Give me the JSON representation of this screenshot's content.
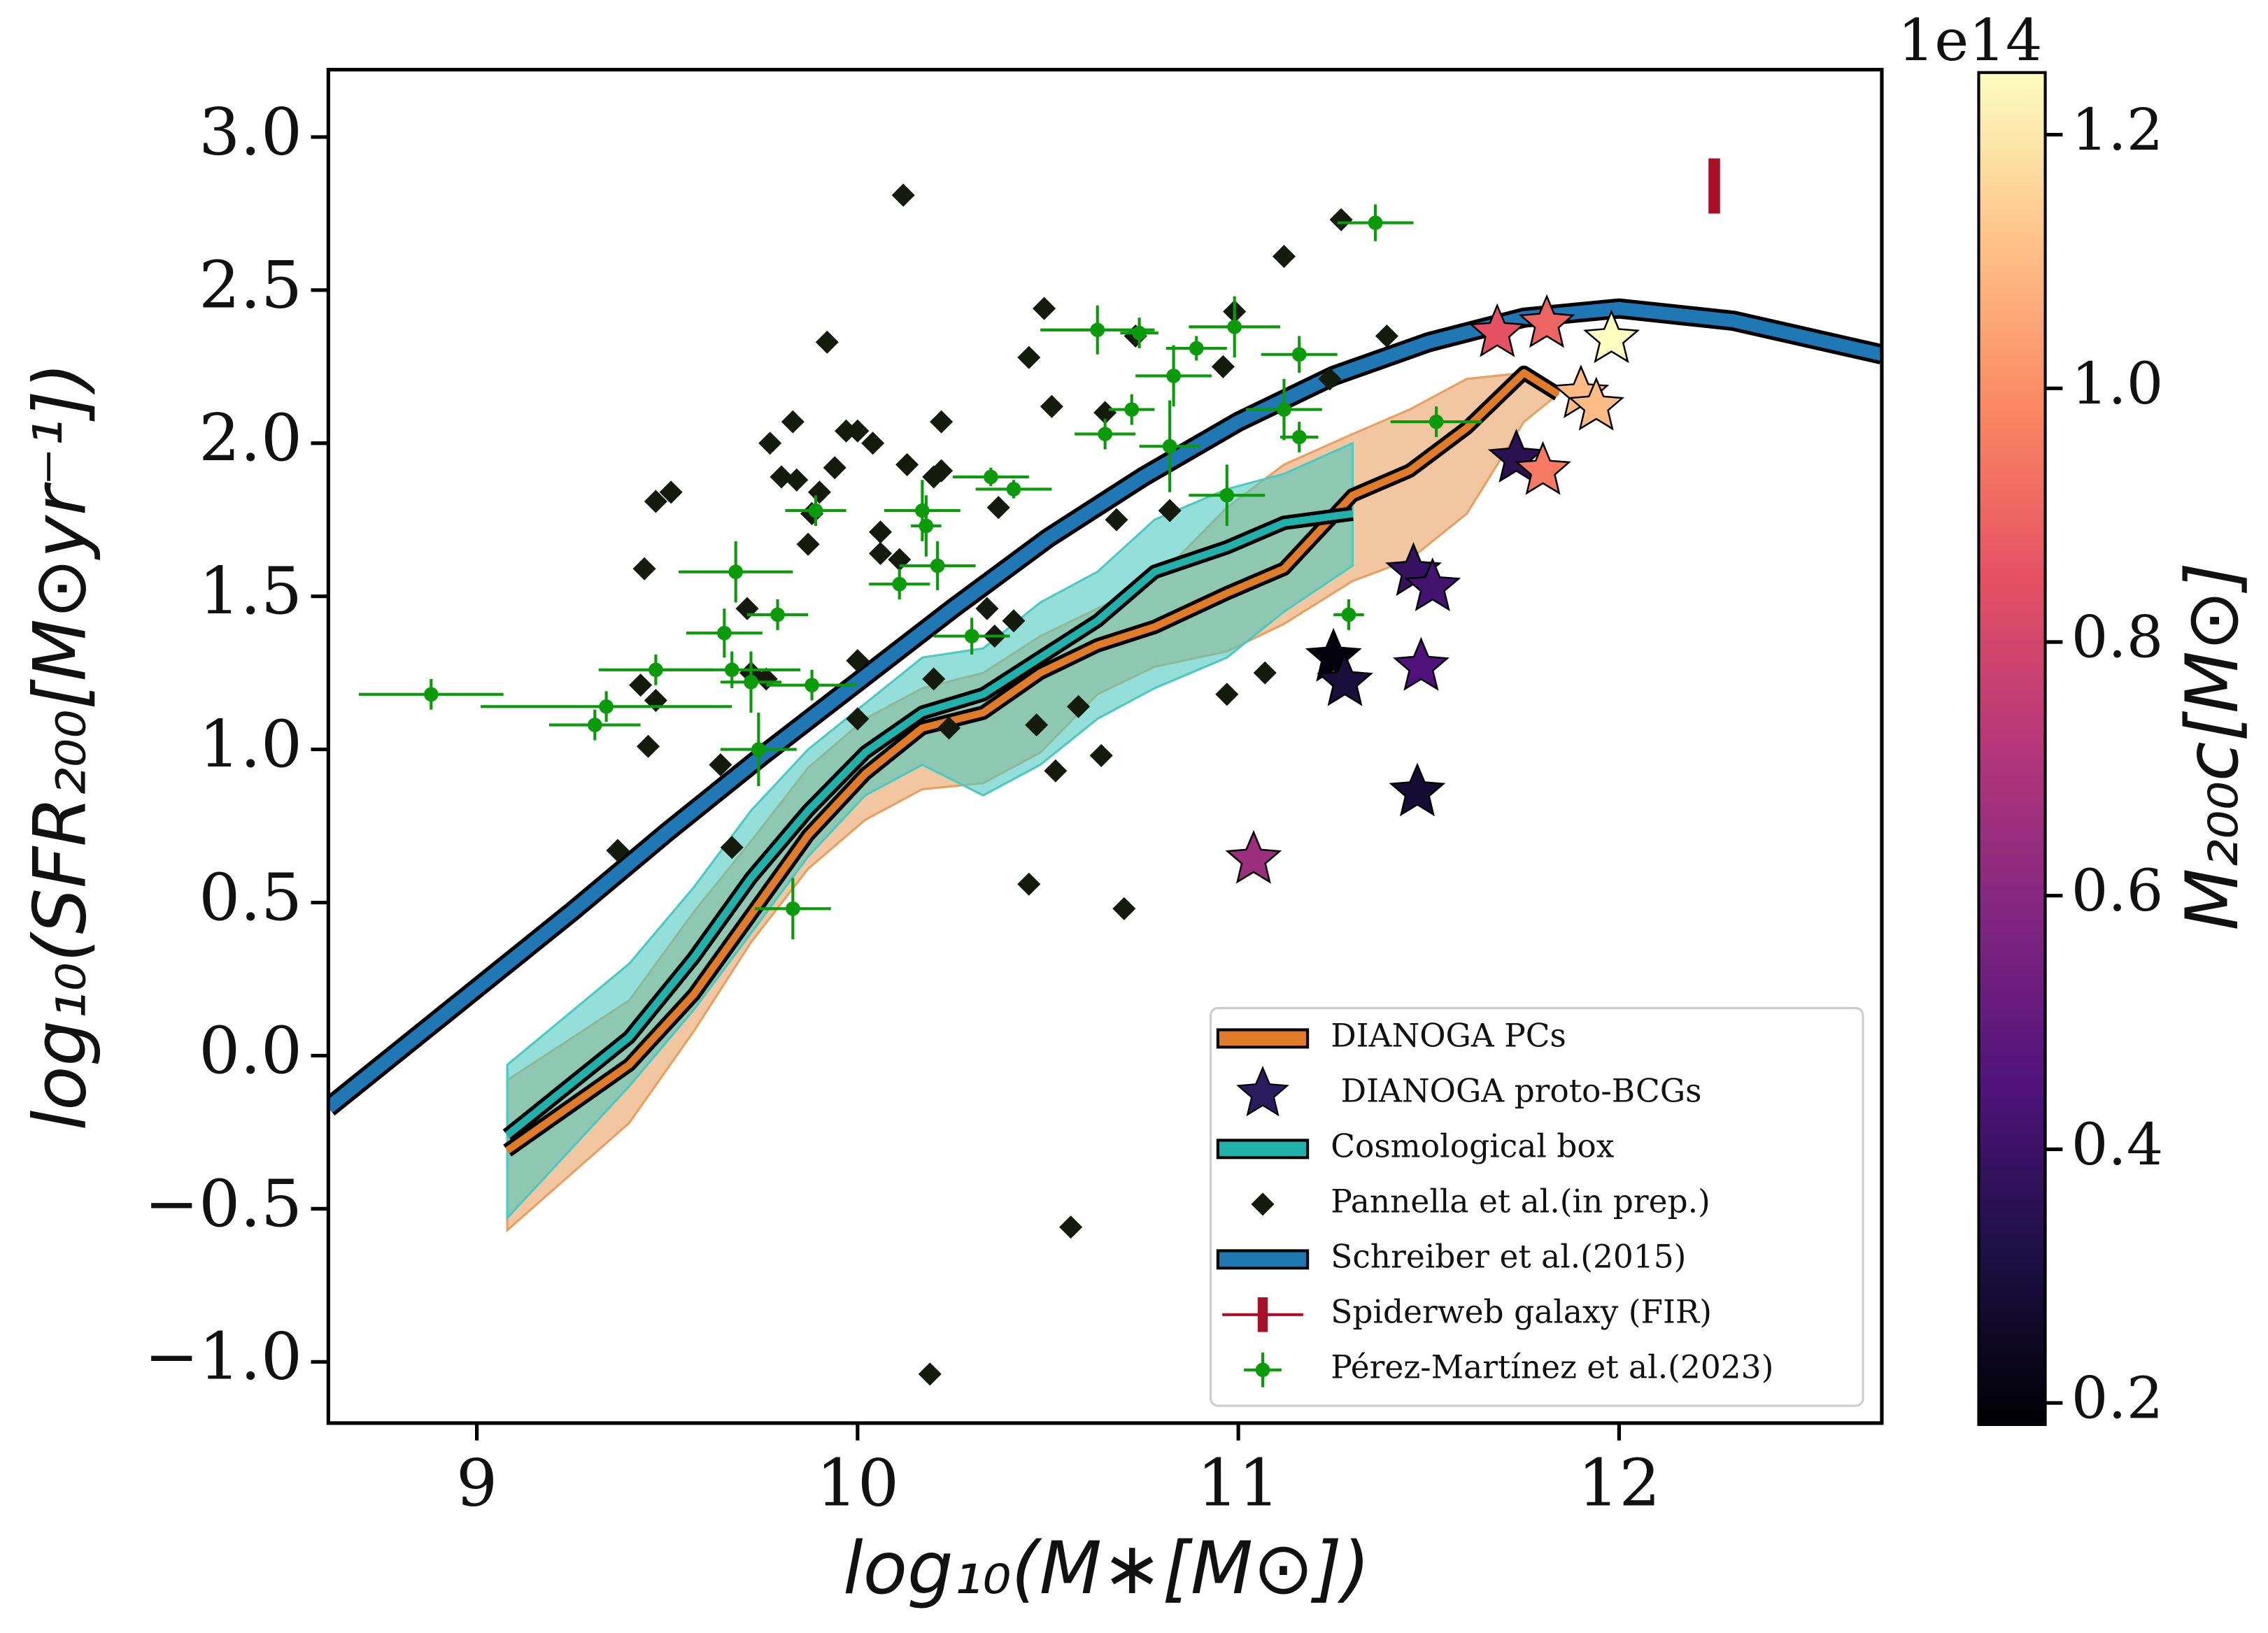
{
  "chart_data": {
    "type": "scatter",
    "x_label": "log₁₀(M∗[M⊙])",
    "y_label": "log₁₀(SFR₂₀₀[M⊙yr⁻¹])",
    "xlim": [
      8.61,
      12.69
    ],
    "ylim": [
      -1.2,
      3.22
    ],
    "xticks": [
      9,
      10,
      11,
      12
    ],
    "yticks": [
      {
        "value": 3,
        "label": "3.0"
      },
      {
        "value": 2.5,
        "label": "2.5"
      },
      {
        "value": 2,
        "label": "2.0"
      },
      {
        "value": 1.5,
        "label": "1.5"
      },
      {
        "value": 1,
        "label": "1.0"
      },
      {
        "value": 0.5,
        "label": "0.5"
      },
      {
        "value": 0,
        "label": "0.0"
      },
      {
        "value": -0.5,
        "label": "−0.5"
      },
      {
        "value": -1,
        "label": "−1.0"
      }
    ],
    "legend": "lower right",
    "colorbar": {
      "label": "M₂₀₀c[M⊙]",
      "offset_label": "1e14",
      "lim": [
        0.183,
        1.249
      ],
      "ticks": [
        0.2,
        0.4,
        0.6,
        0.8,
        {
          "value": 1,
          "label": "1.0"
        },
        1.2
      ],
      "colors": [
        "#000004",
        "#1c1044",
        "#4f127b",
        "#812581",
        "#b5367a",
        "#e55064",
        "#fb8761",
        "#fec287",
        "#fcfdbf"
      ]
    },
    "series": [
      {
        "name": "DIANOGA PCs",
        "type": "line",
        "color": "#e07b28",
        "band_color": "#e8a060",
        "x": [
          9.08,
          9.4,
          9.57,
          9.72,
          9.87,
          10.02,
          10.17,
          10.33,
          10.48,
          10.63,
          10.78,
          10.97,
          11.12,
          11.3,
          11.45,
          11.6,
          11.75,
          11.84
        ],
        "values": [
          -0.31,
          -0.03,
          0.2,
          0.46,
          0.72,
          0.92,
          1.07,
          1.12,
          1.25,
          1.34,
          1.4,
          1.51,
          1.59,
          1.83,
          1.91,
          2.05,
          2.23,
          2.16
        ],
        "lower": [
          -0.57,
          -0.22,
          0.08,
          0.37,
          0.61,
          0.77,
          0.87,
          0.89,
          0.99,
          1.18,
          1.27,
          1.32,
          1.41,
          1.55,
          1.62,
          1.77,
          2.07,
          2.16
        ],
        "upper": [
          -0.08,
          0.18,
          0.47,
          0.7,
          0.94,
          1.1,
          1.2,
          1.25,
          1.37,
          1.46,
          1.55,
          1.79,
          1.93,
          2.03,
          2.11,
          2.21,
          2.23,
          2.16
        ]
      },
      {
        "name": " DIANOGA proto-BCGs",
        "type": "stars",
        "color": "#2a1a5e",
        "x": [
          11.68,
          11.81,
          11.98,
          11.9,
          11.94,
          11.73,
          11.8,
          11.46,
          11.51,
          11.25,
          11.28,
          11.48,
          11.47,
          11.04
        ],
        "values": [
          2.36,
          2.39,
          2.34,
          2.16,
          2.12,
          1.95,
          1.91,
          1.58,
          1.53,
          1.3,
          1.22,
          1.27,
          0.86,
          0.64
        ],
        "m200": [
          0.85,
          0.9,
          1.25,
          1.1,
          1.1,
          0.35,
          0.95,
          0.38,
          0.42,
          0.2,
          0.3,
          0.45,
          0.28,
          0.65
        ]
      },
      {
        "name": "Cosmological box",
        "type": "line",
        "color": "#20b2aa",
        "band_color": "#4cc9c0",
        "x": [
          9.08,
          9.4,
          9.57,
          9.72,
          9.87,
          10.02,
          10.17,
          10.33,
          10.48,
          10.63,
          10.78,
          10.97,
          11.12,
          11.3
        ],
        "values": [
          -0.26,
          0.06,
          0.32,
          0.58,
          0.8,
          0.99,
          1.12,
          1.18,
          1.3,
          1.42,
          1.58,
          1.66,
          1.74,
          1.77
        ],
        "lower": [
          -0.53,
          -0.1,
          0.15,
          0.4,
          0.65,
          0.85,
          0.95,
          0.85,
          0.95,
          1.1,
          1.2,
          1.3,
          1.45,
          1.6
        ],
        "upper": [
          -0.03,
          0.3,
          0.55,
          0.8,
          1.0,
          1.15,
          1.3,
          1.33,
          1.48,
          1.58,
          1.75,
          1.85,
          1.9,
          2.0
        ]
      },
      {
        "name": "Pannella et al.(in prep.)",
        "type": "diamonds",
        "color": "#141a0c",
        "x": [
          10.12,
          11.12,
          11.27,
          10.49,
          9.92,
          10.45,
          10.73,
          10.99,
          10.96,
          11.24,
          11.39,
          10.51,
          10.65,
          9.83,
          10.22,
          9.77,
          9.97,
          10.0,
          10.04,
          9.94,
          10.13,
          10.2,
          10.22,
          9.8,
          9.84,
          9.9,
          9.51,
          9.47,
          9.88,
          10.37,
          10.68,
          10.82,
          10.06,
          9.44,
          10.06,
          10.11,
          9.87,
          9.71,
          10.34,
          10.41,
          10.36,
          9.72,
          9.76,
          9.43,
          9.47,
          9.45,
          10.0,
          10.0,
          10.2,
          10.24,
          10.47,
          10.58,
          11.07,
          10.97,
          10.52,
          10.64,
          9.67,
          9.64,
          9.37,
          10.45,
          10.7,
          10.56,
          10.19
        ],
        "values": [
          2.81,
          2.61,
          2.73,
          2.44,
          2.33,
          2.28,
          2.35,
          2.43,
          2.25,
          2.21,
          2.35,
          2.12,
          2.1,
          2.07,
          2.07,
          2.0,
          2.04,
          2.04,
          2.0,
          1.92,
          1.93,
          1.89,
          1.91,
          1.89,
          1.88,
          1.84,
          1.84,
          1.81,
          1.77,
          1.79,
          1.75,
          1.78,
          1.71,
          1.59,
          1.64,
          1.62,
          1.67,
          1.46,
          1.46,
          1.42,
          1.37,
          1.25,
          1.23,
          1.21,
          1.16,
          1.01,
          1.29,
          1.1,
          1.23,
          1.07,
          1.08,
          1.14,
          1.25,
          1.18,
          0.93,
          0.98,
          0.68,
          0.95,
          0.67,
          0.56,
          0.48,
          -0.56,
          -1.04
        ]
      },
      {
        "name": "Schreiber et al.(2015)",
        "type": "line",
        "color": "#1f77b4",
        "width": "thick",
        "x": [
          8.61,
          9.0,
          9.25,
          9.5,
          9.75,
          10.0,
          10.25,
          10.5,
          10.75,
          11.0,
          11.25,
          11.5,
          11.75,
          12.0,
          12.3,
          12.69
        ],
        "values": [
          -0.17,
          0.22,
          0.47,
          0.73,
          0.98,
          1.22,
          1.46,
          1.69,
          1.89,
          2.07,
          2.22,
          2.33,
          2.41,
          2.44,
          2.4,
          2.29
        ]
      },
      {
        "name": "Spiderweb galaxy (FIR)",
        "type": "errorbar",
        "color": "#a8102a",
        "x": [
          12.25
        ],
        "values": [
          2.84
        ],
        "yerr": [
          0.09
        ]
      },
      {
        "name": "Pérez-Martínez et al.(2023)",
        "type": "errorpoints",
        "color": "#0a9a0a",
        "x": [
          8.88,
          9.34,
          9.31,
          9.68,
          9.65,
          9.67,
          9.47,
          9.72,
          9.79,
          9.74,
          9.88,
          9.83,
          9.89,
          10.17,
          10.11,
          10.21,
          10.35,
          10.41,
          10.3,
          10.18,
          10.63,
          10.74,
          10.83,
          10.89,
          10.82,
          10.65,
          10.72,
          10.99,
          10.97,
          11.16,
          11.16,
          11.12,
          11.36,
          11.29,
          11.52
        ],
        "values": [
          1.18,
          1.14,
          1.08,
          1.58,
          1.38,
          1.26,
          1.26,
          1.22,
          1.44,
          1.0,
          1.21,
          0.48,
          1.78,
          1.78,
          1.54,
          1.6,
          1.89,
          1.85,
          1.37,
          1.73,
          2.37,
          2.36,
          2.22,
          2.31,
          1.99,
          2.03,
          2.11,
          2.38,
          1.83,
          2.29,
          2.02,
          2.11,
          2.72,
          1.44,
          2.07
        ],
        "xerr": [
          0.19,
          0.33,
          0.12,
          0.15,
          0.1,
          0.18,
          0.15,
          0.08,
          0.08,
          0.1,
          0.12,
          0.1,
          0.08,
          0.1,
          0.08,
          0.1,
          0.1,
          0.1,
          0.1,
          0.04,
          0.15,
          0.05,
          0.1,
          0.08,
          0.08,
          0.08,
          0.06,
          0.12,
          0.1,
          0.1,
          0.05,
          0.1,
          0.1,
          0.04,
          0.12
        ],
        "yerr": [
          0.05,
          0.05,
          0.05,
          0.1,
          0.08,
          0.06,
          0.05,
          0.1,
          0.05,
          0.12,
          0.05,
          0.1,
          0.05,
          0.1,
          0.05,
          0.08,
          0.03,
          0.03,
          0.06,
          0.1,
          0.08,
          0.05,
          0.1,
          0.04,
          0.15,
          0.05,
          0.05,
          0.1,
          0.1,
          0.06,
          0.05,
          0.1,
          0.06,
          0.05,
          0.05
        ]
      }
    ]
  }
}
